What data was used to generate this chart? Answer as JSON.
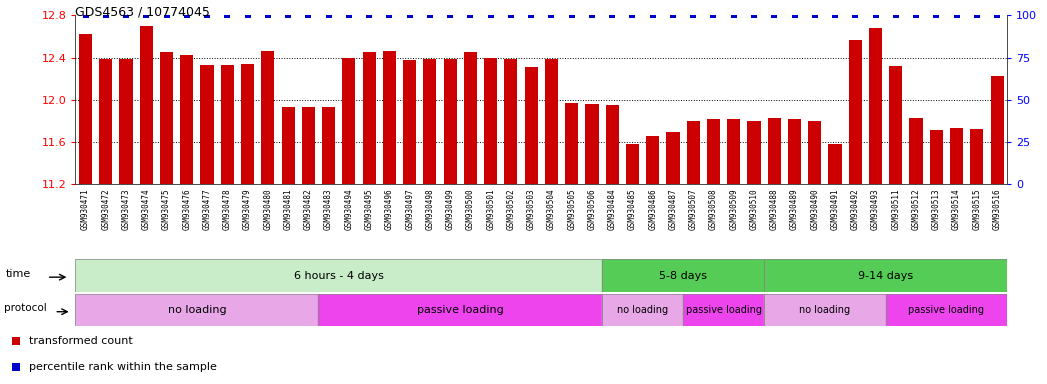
{
  "title": "GDS4563 / 10774045",
  "samples": [
    "GSM930471",
    "GSM930472",
    "GSM930473",
    "GSM930474",
    "GSM930475",
    "GSM930476",
    "GSM930477",
    "GSM930478",
    "GSM930479",
    "GSM930480",
    "GSM930481",
    "GSM930482",
    "GSM930483",
    "GSM930494",
    "GSM930495",
    "GSM930496",
    "GSM930497",
    "GSM930498",
    "GSM930499",
    "GSM930500",
    "GSM930501",
    "GSM930502",
    "GSM930503",
    "GSM930504",
    "GSM930505",
    "GSM930506",
    "GSM930484",
    "GSM930485",
    "GSM930486",
    "GSM930487",
    "GSM930507",
    "GSM930508",
    "GSM930509",
    "GSM930510",
    "GSM930488",
    "GSM930489",
    "GSM930490",
    "GSM930491",
    "GSM930492",
    "GSM930493",
    "GSM930511",
    "GSM930512",
    "GSM930513",
    "GSM930514",
    "GSM930515",
    "GSM930516"
  ],
  "bar_values": [
    12.62,
    12.39,
    12.39,
    12.7,
    12.45,
    12.42,
    12.33,
    12.33,
    12.34,
    12.46,
    11.93,
    11.93,
    11.93,
    12.4,
    12.45,
    12.46,
    12.38,
    12.39,
    12.39,
    12.45,
    12.4,
    12.39,
    12.31,
    12.39,
    11.97,
    11.96,
    11.95,
    11.58,
    11.66,
    11.7,
    11.8,
    11.82,
    11.82,
    11.8,
    11.83,
    11.82,
    11.8,
    11.58,
    12.57,
    12.68,
    12.32,
    11.83,
    11.71,
    11.73,
    11.72,
    12.23
  ],
  "percentile_values": [
    100,
    100,
    100,
    100,
    100,
    100,
    100,
    100,
    100,
    100,
    100,
    100,
    100,
    100,
    100,
    100,
    100,
    100,
    100,
    100,
    100,
    100,
    100,
    100,
    100,
    100,
    100,
    100,
    100,
    100,
    100,
    100,
    100,
    100,
    100,
    100,
    100,
    100,
    100,
    100,
    100,
    100,
    100,
    100,
    100,
    100
  ],
  "bar_color": "#cc0000",
  "percentile_color": "#0000cc",
  "ylim_left": [
    11.2,
    12.8
  ],
  "ylim_right": [
    0,
    100
  ],
  "yticks_left": [
    11.2,
    11.6,
    12.0,
    12.4,
    12.8
  ],
  "yticks_right": [
    0,
    25,
    50,
    75,
    100
  ],
  "grid_lines": [
    11.6,
    12.0,
    12.4
  ],
  "time_groups": [
    {
      "label": "6 hours - 4 days",
      "start": 0,
      "end": 26,
      "color": "#c8edc8"
    },
    {
      "label": "5-8 days",
      "start": 26,
      "end": 34,
      "color": "#55cc55"
    },
    {
      "label": "9-14 days",
      "start": 34,
      "end": 46,
      "color": "#55cc55"
    }
  ],
  "protocol_groups": [
    {
      "label": "no loading",
      "start": 0,
      "end": 12,
      "color": "#e8a8e8"
    },
    {
      "label": "passive loading",
      "start": 12,
      "end": 26,
      "color": "#ee44ee"
    },
    {
      "label": "no loading",
      "start": 26,
      "end": 30,
      "color": "#e8a8e8"
    },
    {
      "label": "passive loading",
      "start": 30,
      "end": 34,
      "color": "#ee44ee"
    },
    {
      "label": "no loading",
      "start": 34,
      "end": 40,
      "color": "#e8a8e8"
    },
    {
      "label": "passive loading",
      "start": 40,
      "end": 46,
      "color": "#ee44ee"
    }
  ],
  "legend_items": [
    {
      "label": "transformed count",
      "color": "#cc0000"
    },
    {
      "label": "percentile rank within the sample",
      "color": "#0000cc"
    }
  ],
  "fig_width": 10.47,
  "fig_height": 3.84,
  "dpi": 100
}
